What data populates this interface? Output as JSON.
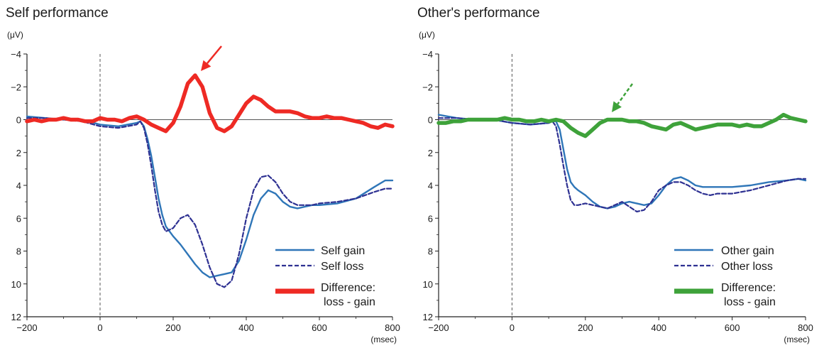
{
  "chart_data": [
    {
      "type": "line",
      "title": "Self performance",
      "ylabel": "(μV)",
      "xlabel": "(msec)",
      "xlim": [
        -200,
        800
      ],
      "ylim": [
        12,
        -4
      ],
      "y_inverted": true,
      "xticks": [
        "-200",
        "0",
        "200",
        "400",
        "600",
        "800"
      ],
      "yticks": [
        "-4",
        "-2",
        "0",
        "2",
        "4",
        "6",
        "8",
        "10",
        "12"
      ],
      "zero_marker": "dashed vertical line at 0 msec",
      "annotation": "red solid arrow pointing to difference peak near 250 msec",
      "legend_position": "bottom-right",
      "series": [
        {
          "name": "Self gain",
          "color": "#2f76b8",
          "style": "solid",
          "x": [
            -200,
            -150,
            -100,
            -50,
            0,
            50,
            100,
            110,
            120,
            130,
            140,
            150,
            160,
            170,
            180,
            200,
            220,
            240,
            260,
            280,
            300,
            320,
            340,
            360,
            380,
            400,
            420,
            440,
            460,
            480,
            500,
            520,
            540,
            560,
            580,
            600,
            650,
            700,
            750,
            780,
            800
          ],
          "y": [
            -0.2,
            -0.1,
            0,
            0,
            0.3,
            0.4,
            0.2,
            0.1,
            0.4,
            1.2,
            2.2,
            3.5,
            4.8,
            5.8,
            6.5,
            7.1,
            7.6,
            8.2,
            8.8,
            9.3,
            9.6,
            9.5,
            9.4,
            9.3,
            8.6,
            7.3,
            5.8,
            4.8,
            4.3,
            4.5,
            5.0,
            5.3,
            5.4,
            5.3,
            5.2,
            5.2,
            5.1,
            4.8,
            4.1,
            3.7,
            3.7
          ]
        },
        {
          "name": "Self loss",
          "color": "#2e3192",
          "style": "dashed",
          "x": [
            -200,
            -150,
            -100,
            -50,
            0,
            50,
            100,
            110,
            120,
            130,
            140,
            150,
            160,
            170,
            180,
            200,
            220,
            240,
            260,
            280,
            300,
            320,
            340,
            360,
            380,
            400,
            420,
            440,
            460,
            480,
            500,
            520,
            540,
            560,
            580,
            600,
            650,
            700,
            750,
            780,
            800
          ],
          "y": [
            -0.1,
            -0.1,
            0,
            0.1,
            0.4,
            0.5,
            0.3,
            0.1,
            0.5,
            1.5,
            2.8,
            4.3,
            5.6,
            6.4,
            6.8,
            6.6,
            6.0,
            5.8,
            6.4,
            7.6,
            9.0,
            10.0,
            10.2,
            9.8,
            8.2,
            6.0,
            4.3,
            3.5,
            3.4,
            3.8,
            4.5,
            5.0,
            5.2,
            5.2,
            5.2,
            5.1,
            5.0,
            4.8,
            4.4,
            4.2,
            4.2
          ]
        },
        {
          "name": "Difference: loss - gain",
          "color": "#ee2a24",
          "style": "thick",
          "x": [
            -200,
            -180,
            -160,
            -140,
            -120,
            -100,
            -80,
            -60,
            -40,
            -20,
            0,
            20,
            40,
            60,
            80,
            100,
            120,
            140,
            160,
            180,
            200,
            220,
            240,
            260,
            280,
            300,
            320,
            340,
            360,
            380,
            400,
            420,
            440,
            460,
            480,
            500,
            520,
            540,
            560,
            580,
            600,
            620,
            640,
            660,
            680,
            700,
            720,
            740,
            760,
            780,
            800
          ],
          "y": [
            0.1,
            0,
            0.1,
            0,
            0,
            -0.1,
            0,
            0,
            0.1,
            0.1,
            -0.1,
            0,
            0,
            0.1,
            -0.1,
            -0.2,
            0,
            0.3,
            0.5,
            0.7,
            0.2,
            -0.8,
            -2.2,
            -2.7,
            -2.0,
            -0.4,
            0.5,
            0.7,
            0.4,
            -0.3,
            -1.0,
            -1.4,
            -1.2,
            -0.8,
            -0.5,
            -0.5,
            -0.5,
            -0.4,
            -0.2,
            -0.1,
            -0.1,
            -0.2,
            -0.1,
            -0.1,
            0,
            0.1,
            0.2,
            0.4,
            0.5,
            0.3,
            0.4
          ]
        }
      ]
    },
    {
      "type": "line",
      "title": "Other's performance",
      "ylabel": "(μV)",
      "xlabel": "(msec)",
      "xlim": [
        -200,
        800
      ],
      "ylim": [
        12,
        -4
      ],
      "y_inverted": true,
      "xticks": [
        "-200",
        "0",
        "200",
        "400",
        "600",
        "800"
      ],
      "yticks": [
        "-4",
        "-2",
        "0",
        "2",
        "4",
        "6",
        "8",
        "10",
        "12"
      ],
      "zero_marker": "dashed vertical line at 0 msec",
      "annotation": "green dashed arrow pointing near 270 msec",
      "legend_position": "bottom-right",
      "series": [
        {
          "name": "Other gain",
          "color": "#2f76b8",
          "style": "solid",
          "x": [
            -200,
            -150,
            -100,
            -50,
            0,
            50,
            100,
            110,
            120,
            130,
            140,
            150,
            160,
            170,
            180,
            200,
            220,
            240,
            260,
            280,
            300,
            320,
            340,
            360,
            380,
            400,
            420,
            440,
            460,
            480,
            500,
            520,
            540,
            560,
            580,
            600,
            650,
            700,
            750,
            780,
            800
          ],
          "y": [
            -0.3,
            -0.1,
            0,
            0,
            0.2,
            0.3,
            0.2,
            0.1,
            0.1,
            0.6,
            1.8,
            3.0,
            3.8,
            4.1,
            4.3,
            4.6,
            5.0,
            5.3,
            5.4,
            5.3,
            5.1,
            5.0,
            5.1,
            5.2,
            5.1,
            4.6,
            4.0,
            3.6,
            3.5,
            3.7,
            4.0,
            4.1,
            4.1,
            4.1,
            4.1,
            4.1,
            4.0,
            3.8,
            3.7,
            3.6,
            3.7
          ]
        },
        {
          "name": "Other loss",
          "color": "#2e3192",
          "style": "dashed",
          "x": [
            -200,
            -150,
            -100,
            -50,
            0,
            50,
            100,
            110,
            120,
            130,
            140,
            150,
            160,
            170,
            180,
            200,
            220,
            240,
            260,
            280,
            300,
            320,
            340,
            360,
            380,
            400,
            420,
            440,
            460,
            480,
            500,
            520,
            540,
            560,
            580,
            600,
            650,
            700,
            750,
            780,
            800
          ],
          "y": [
            -0.1,
            -0.1,
            0,
            0,
            0.2,
            0.3,
            0.2,
            0.1,
            0.4,
            1.5,
            2.8,
            4.0,
            4.9,
            5.2,
            5.2,
            5.1,
            5.2,
            5.3,
            5.4,
            5.2,
            5.0,
            5.3,
            5.6,
            5.5,
            5.0,
            4.3,
            4.0,
            3.8,
            3.8,
            4.0,
            4.3,
            4.5,
            4.6,
            4.5,
            4.5,
            4.5,
            4.3,
            4.0,
            3.7,
            3.6,
            3.6
          ]
        },
        {
          "name": "Difference: loss - gain",
          "color": "#3ea23a",
          "style": "thick",
          "x": [
            -200,
            -180,
            -160,
            -140,
            -120,
            -100,
            -80,
            -60,
            -40,
            -20,
            0,
            20,
            40,
            60,
            80,
            100,
            120,
            140,
            160,
            180,
            200,
            220,
            240,
            260,
            280,
            300,
            320,
            340,
            360,
            380,
            400,
            420,
            440,
            460,
            480,
            500,
            520,
            540,
            560,
            580,
            600,
            620,
            640,
            660,
            680,
            700,
            720,
            740,
            760,
            780,
            800
          ],
          "y": [
            0.2,
            0.2,
            0.1,
            0.1,
            0,
            0,
            0,
            0,
            0,
            -0.1,
            0,
            0,
            0.1,
            0.1,
            0,
            0.1,
            0,
            0.1,
            0.5,
            0.8,
            1.0,
            0.6,
            0.2,
            0,
            0,
            0,
            0.1,
            0.1,
            0.2,
            0.4,
            0.5,
            0.6,
            0.3,
            0.2,
            0.4,
            0.6,
            0.5,
            0.4,
            0.3,
            0.3,
            0.3,
            0.4,
            0.3,
            0.4,
            0.4,
            0.2,
            0,
            -0.3,
            -0.1,
            0,
            0.1
          ]
        }
      ]
    }
  ],
  "legend_labels": {
    "left": [
      "Self gain",
      "Self loss",
      "Difference:",
      "loss - gain"
    ],
    "right": [
      "Other gain",
      "Other loss",
      "Difference:",
      "loss - gain"
    ]
  },
  "colors": {
    "gain": "#2f76b8",
    "loss": "#2e3192",
    "self_difference": "#ee2a24",
    "other_difference": "#3ea23a",
    "axis": "#222222",
    "zero_line": "#555555"
  }
}
